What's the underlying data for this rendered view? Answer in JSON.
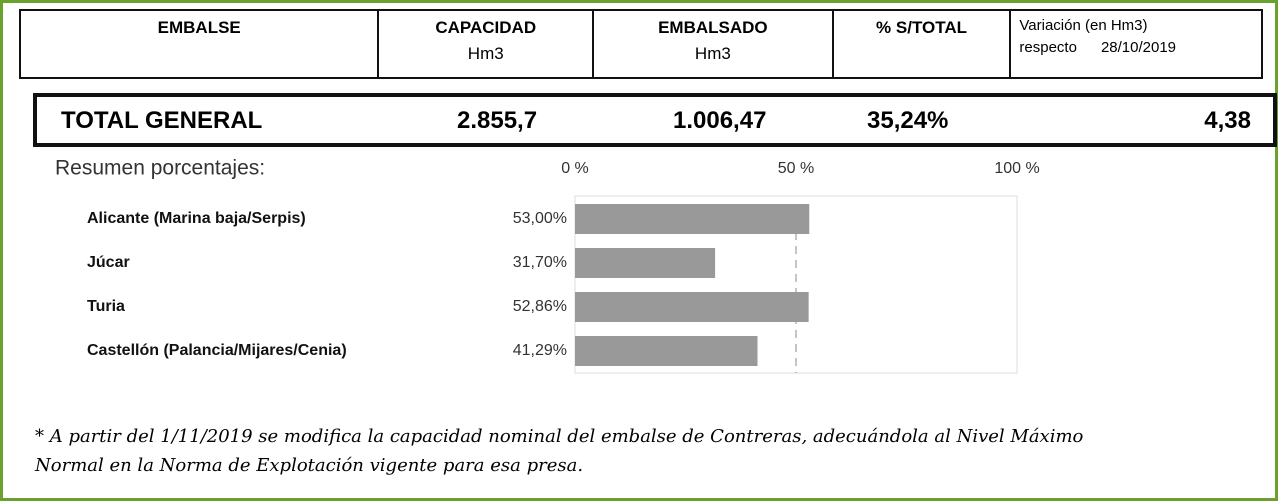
{
  "header": {
    "columns": [
      {
        "title": "EMBALSE"
      },
      {
        "title": "CAPACIDAD",
        "unit": "Hm3"
      },
      {
        "title": "EMBALSADO",
        "unit": "Hm3"
      },
      {
        "title": "% S/TOTAL"
      },
      {
        "title": "Variación (en Hm3)",
        "note": "respecto",
        "date": "28/10/2019"
      }
    ]
  },
  "total": {
    "label": "TOTAL GENERAL",
    "capacidad": "2.855,7",
    "embalsado": "1.006,47",
    "porcentaje": "35,24%",
    "variacion": "4,38"
  },
  "chart_data": {
    "type": "bar",
    "orientation": "horizontal",
    "title": "Resumen porcentajes:",
    "categories": [
      "Alicante (Marina baja/Serpis)",
      "Júcar",
      "Turia",
      "Castellón (Palancia/Mijares/Cenia)"
    ],
    "values": [
      53.0,
      31.7,
      52.86,
      41.29
    ],
    "value_labels": [
      "53,00%",
      "31,70%",
      "52,86%",
      "41,29%"
    ],
    "color": "#999999",
    "xlim": [
      0,
      100
    ],
    "xticks": [
      {
        "value": 0,
        "label": "0 %"
      },
      {
        "value": 50,
        "label": "50 %"
      },
      {
        "value": 100,
        "label": "100 %"
      }
    ]
  },
  "footnote": [
    "* A partir del 1/11/2019 se modifica la capacidad nominal del embalse de Contreras, adecuándola al Nivel Máximo",
    "Normal en la Norma de Explotación vigente para esa presa."
  ]
}
